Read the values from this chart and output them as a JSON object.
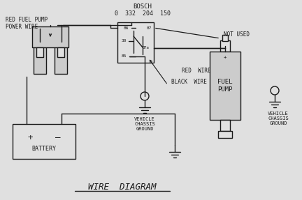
{
  "bg_color": "#e0e0e0",
  "line_color": "#1a1a1a",
  "title": "WIRE  DIAGRAM",
  "bosch_line1": "BOSCH",
  "bosch_line2": "0  332  204  150",
  "red_fuel_pump_label": "RED FUEL PUMP\nPOWER WIRE",
  "not_used_label": "NOT USED",
  "red_wire_label": "RED  WIRE",
  "black_wire_label": "BLACK  WIRE",
  "vehicle_chassis_ground1": "VEHICLE\nCHASSIS\nGROUND",
  "vehicle_chassis_ground2": "VEHICLE\nCHASSIS\nGROUND",
  "fuel_pump_label": "FUEL\nPUMP",
  "battery_label": "BATTERY",
  "fuse_color": "#cccccc",
  "fuel_pump_color": "#cccccc"
}
